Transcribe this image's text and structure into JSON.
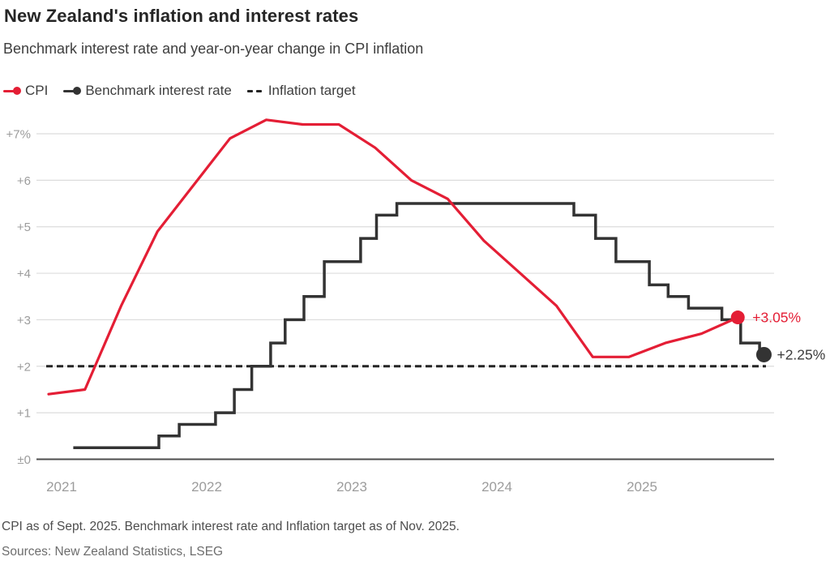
{
  "header": {
    "title": "New Zealand's inflation and interest rates",
    "subtitle": "Benchmark interest rate and year-on-year change in CPI inflation"
  },
  "legend": {
    "items": [
      {
        "label": "CPI",
        "color": "#e41e35",
        "marker": "line-dot"
      },
      {
        "label": "Benchmark interest rate",
        "color": "#333333",
        "marker": "line-dot"
      },
      {
        "label": "Inflation target",
        "color": "#242424",
        "marker": "dashes"
      }
    ]
  },
  "chart_data": {
    "type": "line",
    "title": "New Zealand's inflation and interest rates",
    "subtitle": "Benchmark interest rate and year-on-year change in CPI inflation",
    "xlabel": "",
    "ylabel": "",
    "ylim": [
      0,
      7.45
    ],
    "x_range": [
      2020.95,
      2025.95
    ],
    "grid": "horizontal",
    "legend_position": "top",
    "y_ticks": [
      {
        "value": 7,
        "label": "+7%"
      },
      {
        "value": 6,
        "label": "+6"
      },
      {
        "value": 5,
        "label": "+5"
      },
      {
        "value": 4,
        "label": "+4"
      },
      {
        "value": 3,
        "label": "+3"
      },
      {
        "value": 2,
        "label": "+2"
      },
      {
        "value": 1,
        "label": "+1"
      },
      {
        "value": 0,
        "label": "±0"
      }
    ],
    "x_ticks": [
      {
        "value": 2021,
        "label": "2021"
      },
      {
        "value": 2022,
        "label": "2022"
      },
      {
        "value": 2023,
        "label": "2023"
      },
      {
        "value": 2024,
        "label": "2024"
      },
      {
        "value": 2025,
        "label": "2025"
      }
    ],
    "series": [
      {
        "name": "CPI",
        "type": "line",
        "color": "#e41e35",
        "points": [
          [
            2021.0,
            1.4
          ],
          [
            2021.25,
            1.5
          ],
          [
            2021.5,
            3.3
          ],
          [
            2021.75,
            4.9
          ],
          [
            2022.0,
            5.9
          ],
          [
            2022.25,
            6.9
          ],
          [
            2022.5,
            7.3
          ],
          [
            2022.75,
            7.2
          ],
          [
            2023.0,
            7.2
          ],
          [
            2023.25,
            6.7
          ],
          [
            2023.5,
            6.0
          ],
          [
            2023.75,
            5.6
          ],
          [
            2024.0,
            4.7
          ],
          [
            2024.25,
            4.0
          ],
          [
            2024.5,
            3.3
          ],
          [
            2024.75,
            2.2
          ],
          [
            2025.0,
            2.2
          ],
          [
            2025.25,
            2.5
          ],
          [
            2025.5,
            2.7
          ],
          [
            2025.75,
            3.05
          ]
        ],
        "end_dot": true,
        "end_label": "+3.05%",
        "end_label_color": "#e41e35"
      },
      {
        "name": "Benchmark interest rate",
        "type": "step",
        "color": "#333333",
        "points": [
          [
            2021.17,
            0.25
          ],
          [
            2021.76,
            0.5
          ],
          [
            2021.9,
            0.75
          ],
          [
            2022.15,
            1.0
          ],
          [
            2022.28,
            1.5
          ],
          [
            2022.4,
            2.0
          ],
          [
            2022.53,
            2.5
          ],
          [
            2022.63,
            3.0
          ],
          [
            2022.76,
            3.5
          ],
          [
            2022.9,
            4.25
          ],
          [
            2023.15,
            4.75
          ],
          [
            2023.26,
            5.25
          ],
          [
            2023.4,
            5.5
          ],
          [
            2024.62,
            5.25
          ],
          [
            2024.77,
            4.75
          ],
          [
            2024.91,
            4.25
          ],
          [
            2025.14,
            3.75
          ],
          [
            2025.27,
            3.5
          ],
          [
            2025.41,
            3.25
          ],
          [
            2025.64,
            3.0
          ],
          [
            2025.77,
            2.5
          ],
          [
            2025.9,
            2.25
          ]
        ],
        "end_x": 2025.93,
        "end_dot": true,
        "end_label": "+2.25%",
        "end_label_color": "#3d3d3d"
      },
      {
        "name": "Inflation target",
        "type": "horizontal-dashed",
        "color": "#242424",
        "value": 2.0
      }
    ]
  },
  "footnotes": {
    "note": "CPI as of Sept. 2025. Benchmark interest rate and Inflation target as of Nov. 2025.",
    "sources": "Sources: New Zealand Statistics, LSEG"
  }
}
